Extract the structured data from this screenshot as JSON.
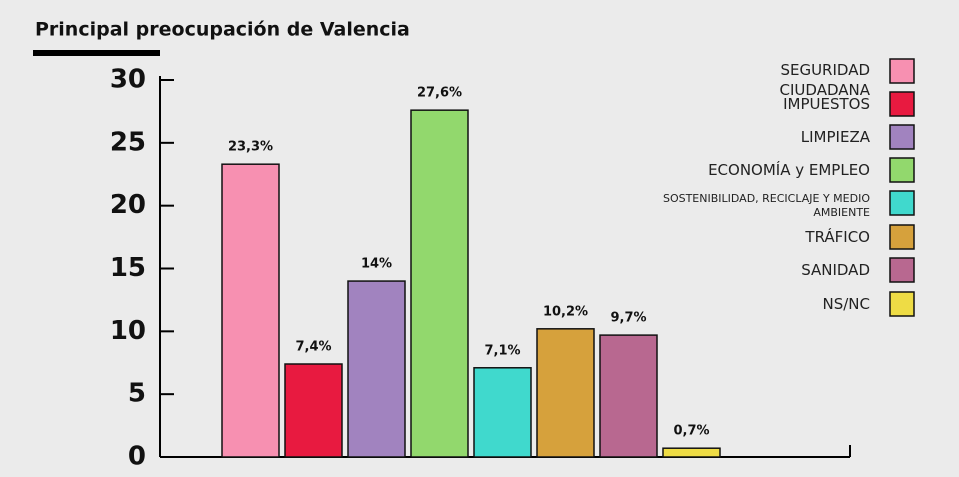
{
  "chart_data": {
    "type": "bar",
    "title": "Principal preocupación de Valencia",
    "categories": [
      "SEGURIDAD CIUDADANA",
      "IMPUESTOS",
      "LIMPIEZA",
      "ECONOMÍA y EMPLEO",
      "SOSTENIBILIDAD, RECICLAJE Y MEDIO AMBIENTE",
      "TRÁFICO",
      "SANIDAD",
      "NS/NC"
    ],
    "values": [
      23.3,
      7.4,
      14,
      27.6,
      7.1,
      10.2,
      9.7,
      0.7
    ],
    "value_labels": [
      "23,3%",
      "7,4%",
      "14%",
      "27,6%",
      "7,1%",
      "10,2%",
      "9,7%",
      "0,7%"
    ],
    "colors": [
      "#f790b1",
      "#e81a40",
      "#a183bf",
      "#92d86d",
      "#40d9cd",
      "#d6a13c",
      "#b86890",
      "#eedc45"
    ],
    "ylim": [
      0,
      30
    ],
    "yticks": [
      0,
      5,
      10,
      15,
      20,
      25,
      30
    ],
    "legend": "right"
  }
}
